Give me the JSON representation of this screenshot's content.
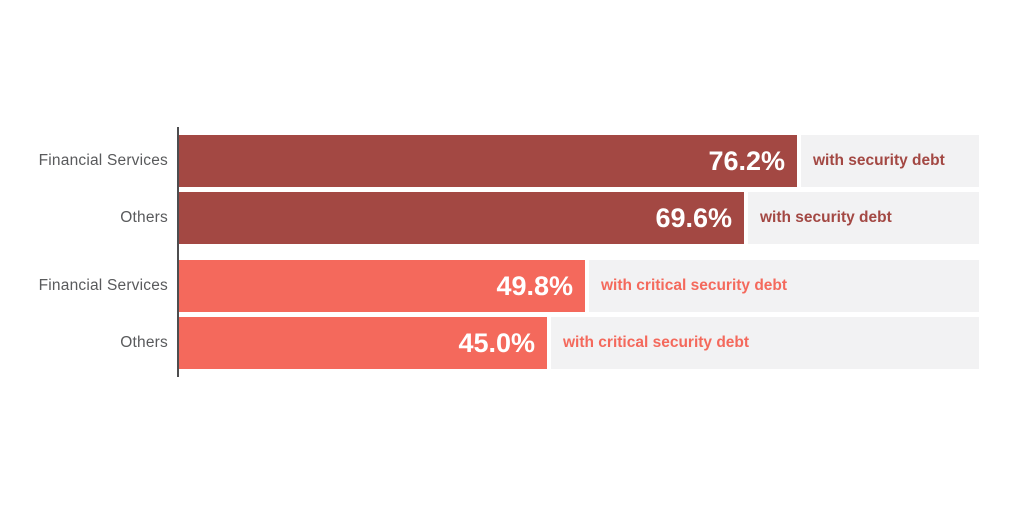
{
  "chart_data": {
    "type": "bar",
    "orientation": "horizontal",
    "title": "",
    "xlabel": "",
    "ylabel": "",
    "xlim": [
      0,
      100
    ],
    "unit": "%",
    "grid": false,
    "legend": false,
    "categories": [
      "Financial Services",
      "Others",
      "Financial Services",
      "Others"
    ],
    "values": [
      76.2,
      69.6,
      49.8,
      45.0
    ],
    "bars": [
      {
        "category": "Financial Services",
        "value": 76.2,
        "value_label": "76.2%",
        "annotation": "with security debt",
        "color": "#a34843"
      },
      {
        "category": "Others",
        "value": 69.6,
        "value_label": "69.6%",
        "annotation": "with security debt",
        "color": "#a34843"
      },
      {
        "category": "Financial Services",
        "value": 49.8,
        "value_label": "49.8%",
        "annotation": "with critical security debt",
        "color": "#f4695c"
      },
      {
        "category": "Others",
        "value": 45.0,
        "value_label": "45.0%",
        "annotation": "with critical security debt",
        "color": "#f4695c"
      }
    ],
    "series_groups": [
      {
        "name": "with security debt",
        "color": "#a34843"
      },
      {
        "name": "with critical security debt",
        "color": "#f4695c"
      }
    ]
  },
  "layout_colors": {
    "background": "#ffffff",
    "track": "#f2f2f3",
    "axis": "#4d4d4f",
    "category_text": "#595a5c",
    "value_text": "#ffffff"
  }
}
